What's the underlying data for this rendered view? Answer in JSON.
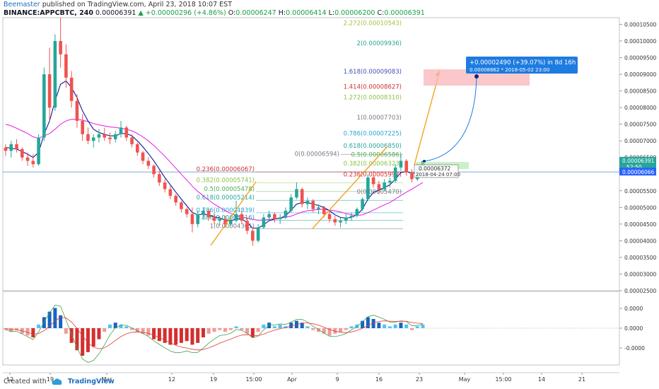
{
  "header": {
    "author": "Beemaster",
    "published": "published on TradingView.com, April 23, 2018 10:07 EST",
    "symbol": "BINANCE:APPCBTC, 240",
    "price": "0.00006391",
    "change": "▲ +0.00000296 (+4.86%)",
    "o_label": "O:",
    "o_value": "0.00006247",
    "h_label": "H:",
    "h_value": "0.00006414",
    "l_label": "L:",
    "l_value": "0.00006200",
    "c_label": "C:",
    "c_value": "0.00006391"
  },
  "footer": {
    "created_with": "Created with",
    "brand": "TradingView"
  },
  "colors": {
    "up": "#26a69a",
    "down": "#ef5350",
    "ma_fast": "#0a1a99",
    "ma_slow": "#e619e6",
    "fib_target": "#1e7be0",
    "arrow": "#f39c12",
    "box": "#f8b6b8"
  },
  "chart_data": {
    "type": "candlestick",
    "x_ticks": [
      "12",
      "19",
      "Mar",
      "12",
      "19",
      "15:00",
      "Apr",
      "9",
      "16",
      "23",
      "May",
      "15:00",
      "14",
      "21"
    ],
    "price_ticks": [
      "0.00010500",
      "0.00010000",
      "0.00009500",
      "0.00009000",
      "0.00008500",
      "0.00008000",
      "0.00007500",
      "0.00007000",
      "0.00006500",
      "0.00005500",
      "0.00005000",
      "0.00004500",
      "0.00004000",
      "0.00003500",
      "0.00003000",
      "0.00002500"
    ],
    "ylim": [
      2.5e-05,
      0.000107
    ],
    "last_price": {
      "label": "0.00006391",
      "value": 6.391e-05
    },
    "countdown": "52:50",
    "line_price": {
      "label": "0.00006066",
      "value": 6.066e-05
    },
    "indicator_ticks": [
      "0.0000",
      "0.0000",
      "-0.0000"
    ],
    "candles": [
      [
        6.8e-05,
        6.9e-05,
        6.55e-05,
        6.7e-05
      ],
      [
        6.7e-05,
        7e-05,
        6.5e-05,
        6.9e-05
      ],
      [
        6.9e-05,
        7.05e-05,
        6.65e-05,
        6.75e-05
      ],
      [
        6.75e-05,
        6.8e-05,
        6.4e-05,
        6.5e-05
      ],
      [
        6.5e-05,
        6.65e-05,
        6.25e-05,
        6.4e-05
      ],
      [
        6.4e-05,
        6.6e-05,
        6.2e-05,
        6.3e-05
      ],
      [
        6.3e-05,
        7.2e-05,
        6.25e-05,
        7.1e-05
      ],
      [
        7.1e-05,
        9.2e-05,
        7e-05,
        9e-05
      ],
      [
        9e-05,
        9.8e-05,
        7.6e-05,
        8e-05
      ],
      [
        8e-05,
        0.000102,
        7.9e-05,
        0.0001
      ],
      [
        0.0001,
        0.000107,
        9.2e-05,
        9.6e-05
      ],
      [
        9.6e-05,
        9.9e-05,
        8.6e-05,
        8.9e-05
      ],
      [
        8.9e-05,
        9.1e-05,
        8e-05,
        8.2e-05
      ],
      [
        8.2e-05,
        8.4e-05,
        7.4e-05,
        7.6e-05
      ],
      [
        7.6e-05,
        7.8e-05,
        7e-05,
        7.2e-05
      ],
      [
        7.2e-05,
        7.4e-05,
        6.9e-05,
        7e-05
      ],
      [
        7e-05,
        7.2e-05,
        6.8e-05,
        7.1e-05
      ],
      [
        7.1e-05,
        7.35e-05,
        6.95e-05,
        7.2e-05
      ],
      [
        7.2e-05,
        7.4e-05,
        7e-05,
        7.1e-05
      ],
      [
        7.1e-05,
        7.25e-05,
        6.9e-05,
        7.05e-05
      ],
      [
        7.05e-05,
        7.3e-05,
        6.95e-05,
        7.2e-05
      ],
      [
        7.2e-05,
        7.6e-05,
        7.1e-05,
        7.4e-05
      ],
      [
        7.4e-05,
        7.45e-05,
        7e-05,
        7.1e-05
      ],
      [
        7.1e-05,
        7.2e-05,
        6.8e-05,
        6.9e-05
      ],
      [
        6.9e-05,
        6.95e-05,
        6.55e-05,
        6.65e-05
      ],
      [
        6.65e-05,
        6.7e-05,
        6.3e-05,
        6.4e-05
      ],
      [
        6.4e-05,
        6.5e-05,
        6.15e-05,
        6.25e-05
      ],
      [
        6.25e-05,
        6.3e-05,
        5.9e-05,
        6e-05
      ],
      [
        6e-05,
        6.1e-05,
        5.65e-05,
        5.75e-05
      ],
      [
        5.75e-05,
        5.85e-05,
        5.45e-05,
        5.55e-05
      ],
      [
        5.55e-05,
        5.65e-05,
        5.25e-05,
        5.35e-05
      ],
      [
        5.35e-05,
        5.4e-05,
        5.05e-05,
        5.15e-05
      ],
      [
        5.15e-05,
        5.2e-05,
        4.85e-05,
        4.95e-05
      ],
      [
        4.95e-05,
        5e-05,
        4.7e-05,
        4.8e-05
      ],
      [
        4.8e-05,
        5e-05,
        4.25e-05,
        4.5e-05
      ],
      [
        4.5e-05,
        4.9e-05,
        4.4e-05,
        4.8e-05
      ],
      [
        4.8e-05,
        5e-05,
        4.65e-05,
        4.9e-05
      ],
      [
        4.9e-05,
        4.95e-05,
        4.6e-05,
        4.7e-05
      ],
      [
        4.7e-05,
        4.85e-05,
        4.5e-05,
        4.6e-05
      ],
      [
        4.6e-05,
        4.75e-05,
        4.45e-05,
        4.65e-05
      ],
      [
        4.65e-05,
        4.75e-05,
        4.4e-05,
        4.5e-05
      ],
      [
        4.5e-05,
        4.7e-05,
        4.45e-05,
        4.6e-05
      ],
      [
        4.6e-05,
        5.2e-05,
        4.55e-05,
        4.8e-05
      ],
      [
        4.8e-05,
        4.9e-05,
        4.5e-05,
        4.6e-05
      ],
      [
        4.6e-05,
        4.7e-05,
        4.2e-05,
        4.3e-05
      ],
      [
        4.3e-05,
        4.4e-05,
        3.85e-05,
        4e-05
      ],
      [
        4e-05,
        4.5e-05,
        3.95e-05,
        4.4e-05
      ],
      [
        4.4e-05,
        4.8e-05,
        4.35e-05,
        4.7e-05
      ],
      [
        4.7e-05,
        4.9e-05,
        4.6e-05,
        4.8e-05
      ],
      [
        4.8e-05,
        4.85e-05,
        4.55e-05,
        4.65e-05
      ],
      [
        4.65e-05,
        4.8e-05,
        4.5e-05,
        4.7e-05
      ],
      [
        4.7e-05,
        5e-05,
        4.65e-05,
        4.9e-05
      ],
      [
        4.9e-05,
        5.4e-05,
        4.85e-05,
        5.3e-05
      ],
      [
        5.3e-05,
        5.75e-05,
        5.25e-05,
        5.55e-05
      ],
      [
        5.55e-05,
        5.6e-05,
        5e-05,
        5.1e-05
      ],
      [
        5.1e-05,
        5.3e-05,
        4.95e-05,
        5.2e-05
      ],
      [
        5.2e-05,
        5.25e-05,
        4.85e-05,
        4.95e-05
      ],
      [
        4.95e-05,
        5.1e-05,
        4.8e-05,
        5e-05
      ],
      [
        5e-05,
        5.05e-05,
        4.7e-05,
        4.8e-05
      ],
      [
        4.8e-05,
        4.9e-05,
        4.55e-05,
        4.65e-05
      ],
      [
        4.65e-05,
        4.75e-05,
        4.45e-05,
        4.55e-05
      ],
      [
        4.55e-05,
        4.7e-05,
        4.4e-05,
        4.6e-05
      ],
      [
        4.6e-05,
        4.8e-05,
        4.5e-05,
        4.7e-05
      ],
      [
        4.7e-05,
        4.85e-05,
        4.6e-05,
        4.75e-05
      ],
      [
        4.75e-05,
        5e-05,
        4.7e-05,
        4.95e-05
      ],
      [
        4.95e-05,
        5.3e-05,
        4.9e-05,
        5.25e-05
      ],
      [
        5.25e-05,
        6e-05,
        5.2e-05,
        5.9e-05
      ],
      [
        5.9e-05,
        6.1e-05,
        5.6e-05,
        5.7e-05
      ],
      [
        5.7e-05,
        5.8e-05,
        5.4e-05,
        5.55e-05
      ],
      [
        5.55e-05,
        5.85e-05,
        5.5e-05,
        5.75e-05
      ],
      [
        5.75e-05,
        5.9e-05,
        5.6e-05,
        5.8e-05
      ],
      [
        5.8e-05,
        6.3e-05,
        5.75e-05,
        6.2e-05
      ],
      [
        6.2e-05,
        6.6e-05,
        6.1e-05,
        6.4e-05
      ],
      [
        6.4e-05,
        6.45e-05,
        5.95e-05,
        6.05e-05
      ],
      [
        6.05e-05,
        6.15e-05,
        5.75e-05,
        5.85e-05
      ],
      [
        5.85e-05,
        6.3e-05,
        5.8e-05,
        6.25e-05
      ],
      [
        6.25e-05,
        6.41e-05,
        6.2e-05,
        6.39e-05
      ]
    ],
    "ma_fast": [
      6.8e-05,
      6.78e-05,
      6.75e-05,
      6.68e-05,
      6.6e-05,
      6.5e-05,
      6.65e-05,
      7.2e-05,
      7.6e-05,
      8.2e-05,
      8.7e-05,
      8.8e-05,
      8.6e-05,
      8.3e-05,
      7.9e-05,
      7.6e-05,
      7.35e-05,
      7.25e-05,
      7.2e-05,
      7.15e-05,
      7.15e-05,
      7.22e-05,
      7.22e-05,
      7.15e-05,
      7e-05,
      6.82e-05,
      6.62e-05,
      6.4e-05,
      6.15e-05,
      5.9e-05,
      5.68e-05,
      5.46e-05,
      5.25e-05,
      5.05e-05,
      4.85e-05,
      4.78e-05,
      4.8e-05,
      4.78e-05,
      4.72e-05,
      4.68e-05,
      4.62e-05,
      4.6e-05,
      4.65e-05,
      4.65e-05,
      4.55e-05,
      4.38e-05,
      4.38e-05,
      4.48e-05,
      4.6e-05,
      4.65e-05,
      4.68e-05,
      4.75e-05,
      4.92e-05,
      5.1e-05,
      5.15e-05,
      5.15e-05,
      5.1e-05,
      5.06e-05,
      5e-05,
      4.9e-05,
      4.78e-05,
      4.7e-05,
      4.68e-05,
      4.7e-05,
      4.78e-05,
      4.95e-05,
      5.25e-05,
      5.45e-05,
      5.52e-05,
      5.6e-05,
      5.68e-05,
      5.85e-05,
      6.05e-05,
      6.08e-05,
      6.02e-05,
      6.06e-05,
      6.15e-05
    ],
    "ma_slow": [
      7.5e-05,
      7.45e-05,
      7.38e-05,
      7.3e-05,
      7.22e-05,
      7.12e-05,
      7.08e-05,
      7.15e-05,
      7.22e-05,
      7.35e-05,
      7.5e-05,
      7.6e-05,
      7.65e-05,
      7.65e-05,
      7.62e-05,
      7.58e-05,
      7.52e-05,
      7.48e-05,
      7.45e-05,
      7.42e-05,
      7.4e-05,
      7.38e-05,
      7.35e-05,
      7.3e-05,
      7.22e-05,
      7.12e-05,
      7e-05,
      6.86e-05,
      6.7e-05,
      6.54e-05,
      6.36e-05,
      6.18e-05,
      6e-05,
      5.82e-05,
      5.64e-05,
      5.48e-05,
      5.35e-05,
      5.22e-05,
      5.1e-05,
      5e-05,
      4.9e-05,
      4.82e-05,
      4.76e-05,
      4.72e-05,
      4.68e-05,
      4.64e-05,
      4.62e-05,
      4.62e-05,
      4.64e-05,
      4.66e-05,
      4.68e-05,
      4.7e-05,
      4.74e-05,
      4.8e-05,
      4.86e-05,
      4.9e-05,
      4.92e-05,
      4.94e-05,
      4.94e-05,
      4.92e-05,
      4.9e-05,
      4.86e-05,
      4.82e-05,
      4.78e-05,
      4.76e-05,
      4.78e-05,
      4.85e-05,
      4.92e-05,
      5e-05,
      5.08e-05,
      5.15e-05,
      5.25e-05,
      5.36e-05,
      5.46e-05,
      5.55e-05,
      5.65e-05,
      5.75e-05
    ],
    "fib_left": [
      {
        "label": "0.236(0.00006067)",
        "price": 6.067e-05,
        "color": "#d32f2f"
      },
      {
        "label": "0.382(0.00005741)",
        "price": 5.741e-05,
        "color": "#8bc34a"
      },
      {
        "label": "0.5(0.00005478)",
        "price": 5.478e-05,
        "color": "#4caf50"
      },
      {
        "label": "0.618(0.00005214)",
        "price": 5.214e-05,
        "color": "#26a69a"
      },
      {
        "label": "0.786(0.00004839)",
        "price": 4.839e-05,
        "color": "#29a5d8"
      },
      {
        "label": "0.886(0.00004616)",
        "price": 4.616e-05,
        "color": "#26a69a"
      },
      {
        "label": "1(0.00004361)",
        "price": 4.361e-05,
        "color": "#787b86"
      }
    ],
    "fib_right": [
      {
        "label": "2.272(0.00010543)",
        "price": 0.00010543,
        "color": "#a4c439"
      },
      {
        "label": "2(0.00009936)",
        "price": 9.936e-05,
        "color": "#26a69a"
      },
      {
        "label": "1.618(0.00009083)",
        "price": 9.083e-05,
        "color": "#3f51b5"
      },
      {
        "label": "1.414(0.00008627)",
        "price": 8.627e-05,
        "color": "#d32f2f"
      },
      {
        "label": "1.272(0.00008310)",
        "price": 8.31e-05,
        "color": "#8bc34a"
      },
      {
        "label": "1(0.00007703)",
        "price": 7.703e-05,
        "color": "#787b86"
      },
      {
        "label": "0.786(0.00007225)",
        "price": 7.225e-05,
        "color": "#29a5d8"
      },
      {
        "label": "0.618(0.00006850)",
        "price": 6.85e-05,
        "color": "#26a69a"
      },
      {
        "label": "0.5(0.00006586)",
        "price": 6.586e-05,
        "color": "#4caf50"
      },
      {
        "label": "0.382(0.00006323)",
        "price": 6.323e-05,
        "color": "#8bc34a"
      },
      {
        "label": "0.236(0.00005997)",
        "price": 5.997e-05,
        "color": "#d32f2f"
      },
      {
        "label": "0(0.00005470)",
        "price": 5.47e-05,
        "color": "#787b86"
      }
    ],
    "fib_top": {
      "label": "0(0.00006594)",
      "price": 6.594e-05,
      "color": "#787b86"
    },
    "target": {
      "line1": "+0.00002490 (+39.07%) in 8d 16h",
      "line2": "0.00008862  *  2018-05-02  23:00",
      "price": 8.862e-05
    },
    "marker": {
      "price_label": "0.00006372",
      "date_label": "2018-04-24 07:00"
    },
    "hist": [
      -1,
      -2,
      -1,
      -3,
      -4,
      -5,
      2,
      6,
      9,
      11,
      7,
      -3,
      -8,
      -12,
      -15,
      -13,
      -10,
      -6,
      -2,
      2,
      3,
      2,
      1,
      -1,
      -2,
      -3,
      -4,
      -6,
      -7,
      -8,
      -9,
      -9,
      -8,
      -7,
      -9,
      -8,
      -5,
      -3,
      -2,
      -1,
      -2,
      -1,
      1,
      -1,
      -3,
      -5,
      -2,
      2,
      3,
      1,
      2,
      1,
      3,
      4,
      3,
      1,
      -1,
      -2,
      -3,
      -4,
      -3,
      -2,
      -1,
      1,
      2,
      4,
      6,
      5,
      3,
      2,
      1,
      2,
      3,
      2,
      -1,
      1,
      2
    ]
  }
}
